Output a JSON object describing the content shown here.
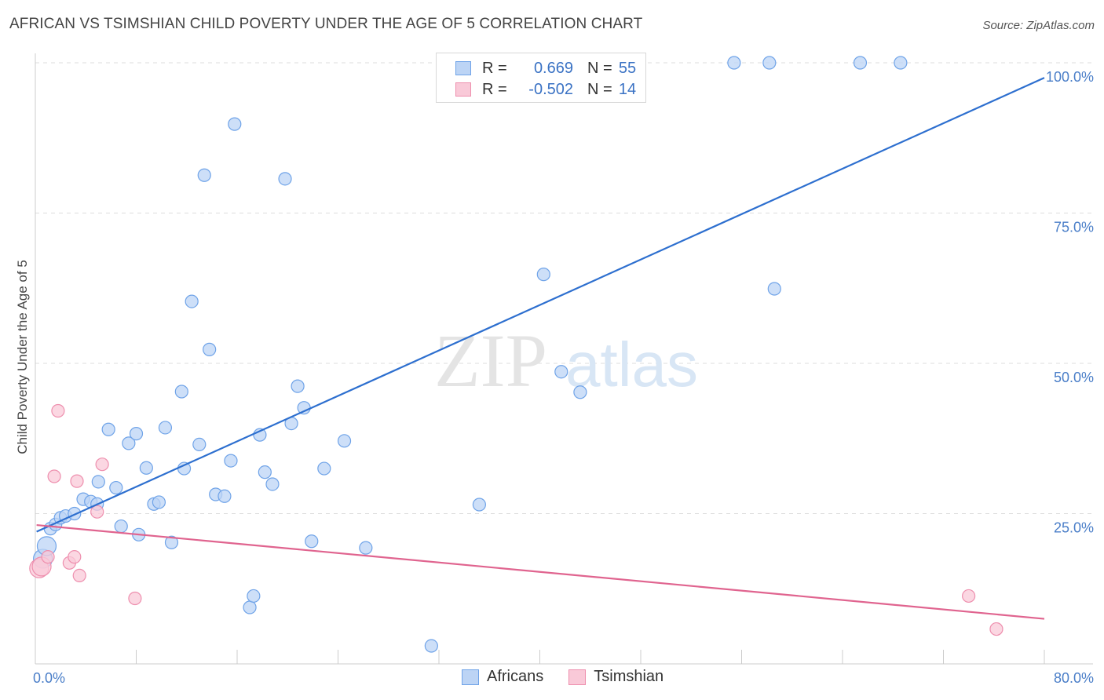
{
  "title": "AFRICAN VS TSIMSHIAN CHILD POVERTY UNDER THE AGE OF 5 CORRELATION CHART",
  "source": "Source: ZipAtlas.com",
  "watermark": {
    "zip": "ZIP",
    "atlas": "atlas"
  },
  "legend": {
    "r_label": "R =",
    "n_label": "N =",
    "rows": [
      {
        "r": "0.669",
        "n": "55",
        "color": "#6fa3e8",
        "fill": "#bcd4f5"
      },
      {
        "r": "-0.502",
        "n": "14",
        "color": "#ee8fae",
        "fill": "#f9c9d8"
      }
    ]
  },
  "bottom_legend": [
    "Africans",
    "Tsimshian"
  ],
  "colors": {
    "africans_fill": "#bcd4f5",
    "africans_stroke": "#6fa3e8",
    "africans_line": "#2d6fcf",
    "tsimshian_fill": "#f9c9d8",
    "tsimshian_stroke": "#ee8fae",
    "tsimshian_line": "#e0648f",
    "tick_text": "#4a7ec8",
    "grid": "#dddddd"
  },
  "chart_data": {
    "type": "scatter",
    "title": "AFRICAN VS TSIMSHIAN CHILD POVERTY UNDER THE AGE OF 5 CORRELATION CHART",
    "xlabel": "",
    "ylabel": "Child Poverty Under the Age of 5",
    "xlim": [
      0,
      80
    ],
    "ylim": [
      0,
      100
    ],
    "x_tick_labels": [
      "0.0%",
      "80.0%"
    ],
    "y_tick_labels": [
      "25.0%",
      "50.0%",
      "75.0%",
      "100.0%"
    ],
    "y_ticks": [
      25,
      50,
      75,
      100
    ],
    "grid": true,
    "legend_position": "top-center",
    "series": [
      {
        "name": "Africans",
        "points": [
          [
            0.6,
            17.5
          ],
          [
            0.9,
            19.6
          ],
          [
            1.2,
            22.5
          ],
          [
            1.6,
            23.2
          ],
          [
            2.0,
            24.3
          ],
          [
            2.4,
            24.6
          ],
          [
            3.1,
            25.0
          ],
          [
            3.8,
            27.4
          ],
          [
            4.4,
            27.0
          ],
          [
            4.9,
            26.6
          ],
          [
            5.0,
            30.3
          ],
          [
            5.8,
            39.0
          ],
          [
            6.4,
            29.3
          ],
          [
            6.8,
            22.9
          ],
          [
            7.4,
            36.7
          ],
          [
            8.0,
            38.3
          ],
          [
            8.2,
            21.5
          ],
          [
            8.8,
            32.6
          ],
          [
            9.4,
            26.6
          ],
          [
            9.8,
            26.9
          ],
          [
            10.3,
            39.3
          ],
          [
            10.8,
            20.2
          ],
          [
            11.6,
            45.3
          ],
          [
            11.8,
            32.5
          ],
          [
            12.4,
            60.3
          ],
          [
            13.0,
            36.5
          ],
          [
            13.4,
            81.3
          ],
          [
            13.8,
            52.3
          ],
          [
            14.3,
            28.2
          ],
          [
            15.0,
            27.9
          ],
          [
            15.5,
            33.8
          ],
          [
            15.8,
            89.8
          ],
          [
            17.0,
            9.4
          ],
          [
            17.3,
            11.3
          ],
          [
            17.8,
            38.1
          ],
          [
            18.2,
            31.9
          ],
          [
            18.8,
            29.9
          ],
          [
            19.8,
            80.7
          ],
          [
            20.3,
            40.0
          ],
          [
            20.8,
            46.2
          ],
          [
            21.3,
            42.6
          ],
          [
            21.9,
            20.4
          ],
          [
            22.9,
            32.5
          ],
          [
            24.5,
            37.1
          ],
          [
            26.2,
            19.3
          ],
          [
            31.4,
            3.0
          ],
          [
            35.2,
            26.5
          ],
          [
            40.3,
            64.8
          ],
          [
            41.7,
            48.6
          ],
          [
            43.2,
            45.2
          ],
          [
            55.4,
            100.0
          ],
          [
            58.2,
            100.0
          ],
          [
            58.6,
            62.4
          ],
          [
            65.4,
            100.0
          ],
          [
            68.6,
            100.0
          ]
        ]
      },
      {
        "name": "Tsimshian",
        "points": [
          [
            0.3,
            15.9
          ],
          [
            0.5,
            16.2
          ],
          [
            1.0,
            17.8
          ],
          [
            1.5,
            31.2
          ],
          [
            1.8,
            42.1
          ],
          [
            2.7,
            16.8
          ],
          [
            3.1,
            17.8
          ],
          [
            3.3,
            30.4
          ],
          [
            3.5,
            14.7
          ],
          [
            4.9,
            25.3
          ],
          [
            5.3,
            33.2
          ],
          [
            7.9,
            10.9
          ],
          [
            74.0,
            11.3
          ],
          [
            76.2,
            5.8
          ]
        ]
      }
    ],
    "trend_lines": [
      {
        "name": "Africans",
        "x": [
          0.1,
          80.0
        ],
        "y": [
          22.0,
          97.5
        ]
      },
      {
        "name": "Tsimshian",
        "x": [
          0.1,
          80.0
        ],
        "y": [
          23.1,
          7.5
        ]
      }
    ]
  }
}
